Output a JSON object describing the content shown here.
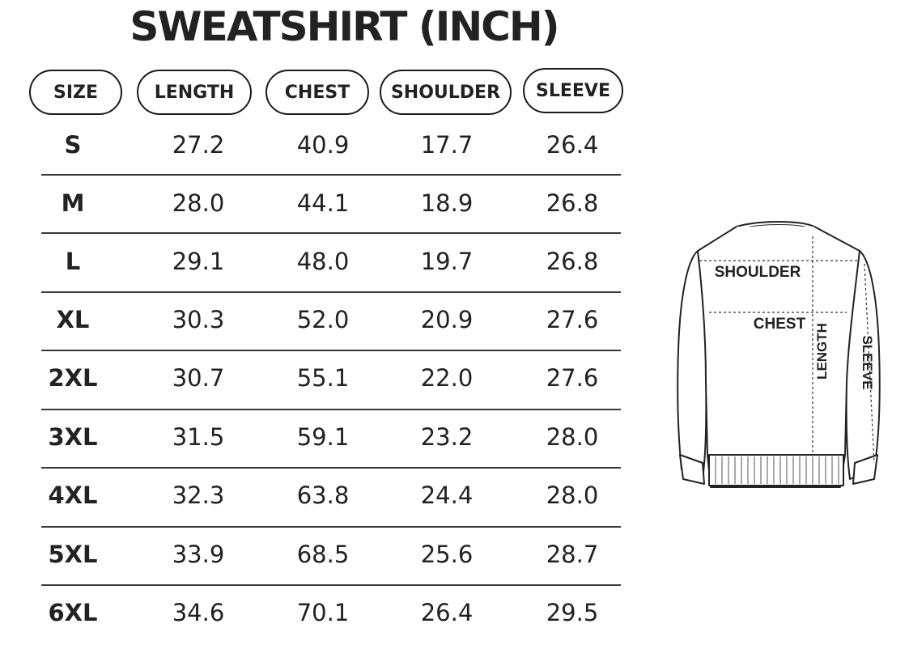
{
  "title": "SWEATSHIRT (INCH)",
  "headers": [
    "SIZE",
    "LENGTH",
    "CHEST",
    "SHOULDER",
    "SLEEVE"
  ],
  "rows": [
    {
      "size": "S",
      "length": "27.2",
      "chest": "40.9",
      "shoulder": "17.7",
      "sleeve": "26.4"
    },
    {
      "size": "M",
      "length": "28.0",
      "chest": "44.1",
      "shoulder": "18.9",
      "sleeve": "26.8"
    },
    {
      "size": "L",
      "length": "29.1",
      "chest": "48.0",
      "shoulder": "19.7",
      "sleeve": "26.8"
    },
    {
      "size": "XL",
      "length": "30.3",
      "chest": "52.0",
      "shoulder": "20.9",
      "sleeve": "27.6"
    },
    {
      "size": "2XL",
      "length": "30.7",
      "chest": "55.1",
      "shoulder": "22.0",
      "sleeve": "27.6"
    },
    {
      "size": "3XL",
      "length": "31.5",
      "chest": "59.1",
      "shoulder": "23.2",
      "sleeve": "28.0"
    },
    {
      "size": "4XL",
      "length": "32.3",
      "chest": "63.8",
      "shoulder": "24.4",
      "sleeve": "28.0"
    },
    {
      "size": "5XL",
      "length": "33.9",
      "chest": "68.5",
      "shoulder": "25.6",
      "sleeve": "28.7"
    },
    {
      "size": "6XL",
      "length": "34.6",
      "chest": "70.1",
      "shoulder": "26.4",
      "sleeve": "29.5"
    }
  ],
  "diagram": {
    "shoulder_label": "SHOULDER",
    "chest_label": "CHEST",
    "length_label": "LENGTH",
    "sleeve_label": "SLEEVE"
  }
}
